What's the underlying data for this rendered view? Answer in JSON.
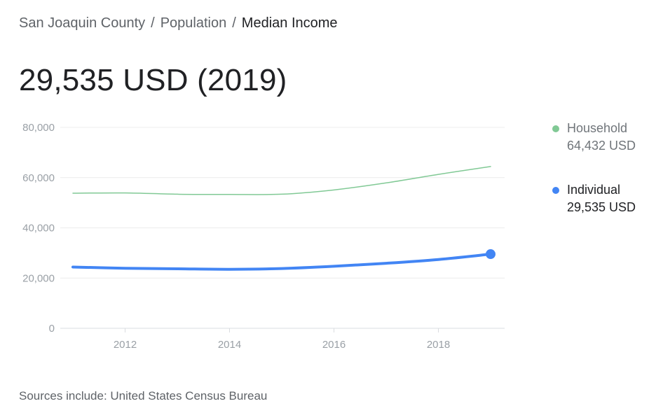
{
  "breadcrumb": {
    "items": [
      "San Joaquin County",
      "Population",
      "Median Income"
    ],
    "separator": "/"
  },
  "headline": "29,535 USD (2019)",
  "legend": [
    {
      "name": "Household",
      "value": "64,432 USD",
      "color": "#81c995"
    },
    {
      "name": "Individual",
      "value": "29,535 USD",
      "color": "#4285f4"
    }
  ],
  "source": "Sources include: United States Census Bureau",
  "chart_data": {
    "type": "line",
    "title": "",
    "xlabel": "",
    "ylabel": "",
    "x": [
      2011,
      2012,
      2013,
      2014,
      2015,
      2016,
      2017,
      2018,
      2019
    ],
    "xlim": [
      2011,
      2019
    ],
    "ylim": [
      0,
      80000
    ],
    "x_ticks": [
      2012,
      2014,
      2016,
      2018
    ],
    "y_ticks": [
      0,
      20000,
      40000,
      60000,
      80000
    ],
    "y_tick_labels": [
      "0",
      "20,000",
      "40,000",
      "60,000",
      "80,000"
    ],
    "grid": true,
    "legend_position": "right",
    "series": [
      {
        "name": "Household",
        "color": "#81c995",
        "values": [
          53800,
          53900,
          53400,
          53300,
          53400,
          55100,
          57900,
          61300,
          64432
        ]
      },
      {
        "name": "Individual",
        "color": "#4285f4",
        "values": [
          24400,
          23900,
          23700,
          23500,
          23800,
          24700,
          25900,
          27400,
          29535
        ]
      }
    ]
  }
}
